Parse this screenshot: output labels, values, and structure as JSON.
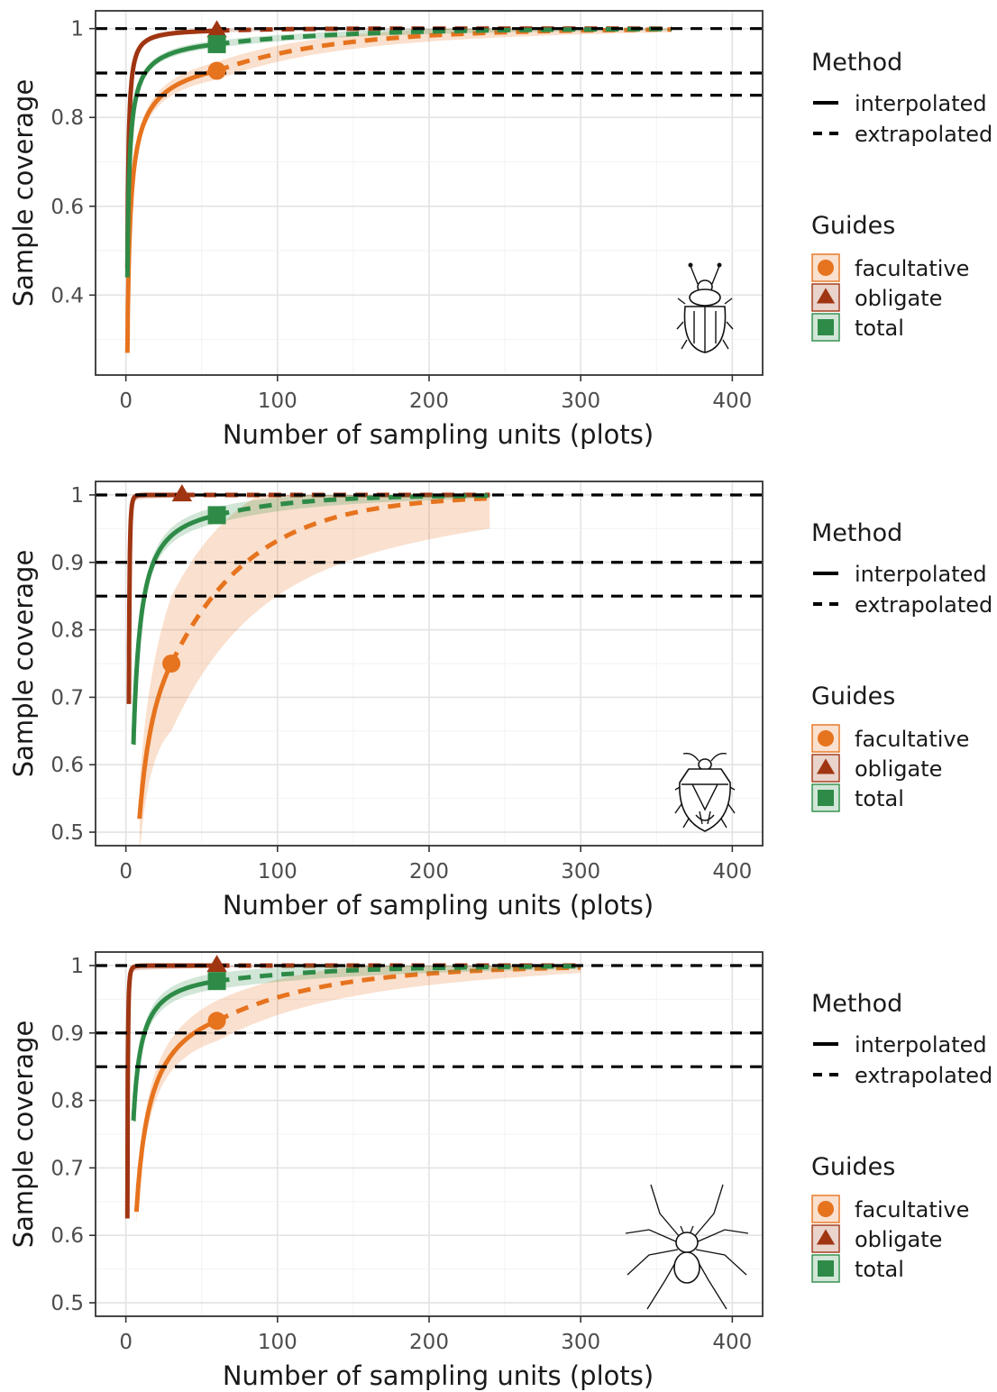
{
  "colors": {
    "facultative": "#e6731e",
    "obligate": "#a03512",
    "total": "#2e8b47",
    "reference_line": "#000000",
    "panel_border": "#333333",
    "grid_major": "#e3e3e3",
    "grid_minor": "#f2f2f2"
  },
  "legend": {
    "method_title": "Method",
    "method_items": [
      {
        "label": "interpolated",
        "line": "solid"
      },
      {
        "label": "extrapolated",
        "line": "dashed"
      }
    ],
    "guides_title": "Guides",
    "guides_items": [
      {
        "label": "facultative",
        "shape": "circle",
        "color": "#e6731e"
      },
      {
        "label": "obligate",
        "shape": "triangle",
        "color": "#a03512"
      },
      {
        "label": "total",
        "shape": "square",
        "color": "#2e8b47"
      }
    ]
  },
  "chart_data": [
    {
      "type": "line",
      "organism_icon": "beetle-icon",
      "xlabel": "Number of sampling units (plots)",
      "ylabel": "Sample coverage",
      "xlim": [
        -20,
        420
      ],
      "ylim": [
        0.22,
        1.04
      ],
      "xticks": [
        0,
        100,
        200,
        300,
        400
      ],
      "yticks": [
        0.4,
        0.6,
        0.8,
        1.0
      ],
      "reference_lines": [
        1.0,
        0.9,
        0.85
      ],
      "grid": true,
      "legend_position": "right",
      "series": [
        {
          "name": "facultative",
          "observed": {
            "x": 60,
            "y": 0.905
          },
          "start": {
            "x": 1,
            "y": 0.27
          },
          "end": {
            "x": 360,
            "y": 0.998
          },
          "band_width": 0.02,
          "band_width_end": 0.006,
          "ci_tail": 0.012
        },
        {
          "name": "obligate",
          "observed": {
            "x": 60,
            "y": 0.995
          },
          "start": {
            "x": 1,
            "y": 0.46
          },
          "end": {
            "x": 360,
            "y": 1.0
          },
          "band_width": 0.004,
          "band_width_end": 0.001,
          "ci_tail": 0.01
        },
        {
          "name": "total",
          "observed": {
            "x": 60,
            "y": 0.965
          },
          "start": {
            "x": 1,
            "y": 0.44
          },
          "end": {
            "x": 360,
            "y": 0.999
          },
          "band_width": 0.008,
          "band_width_end": 0.003,
          "ci_tail": 0.01
        }
      ]
    },
    {
      "type": "line",
      "organism_icon": "shield-bug-icon",
      "xlabel": "Number of sampling units (plots)",
      "ylabel": "Sample coverage",
      "xlim": [
        -20,
        420
      ],
      "ylim": [
        0.48,
        1.02
      ],
      "xticks": [
        0,
        100,
        200,
        300,
        400
      ],
      "yticks": [
        0.5,
        0.6,
        0.7,
        0.8,
        0.9,
        1.0
      ],
      "reference_lines": [
        1.0,
        0.9,
        0.85
      ],
      "grid": true,
      "legend_position": "right",
      "series": [
        {
          "name": "facultative",
          "observed": {
            "x": 30,
            "y": 0.75
          },
          "start": {
            "x": 9,
            "y": 0.52
          },
          "end": {
            "x": 240,
            "y": 0.995
          },
          "band_width": 0.1,
          "band_width_end": 0.045,
          "ci_tail": 0.03
        },
        {
          "name": "obligate",
          "observed": {
            "x": 37,
            "y": 1.0
          },
          "start": {
            "x": 2,
            "y": 0.69
          },
          "end": {
            "x": 240,
            "y": 1.0
          },
          "band_width": 0.003,
          "band_width_end": 0.001,
          "ci_tail": 0.01
        },
        {
          "name": "total",
          "observed": {
            "x": 60,
            "y": 0.97
          },
          "start": {
            "x": 5,
            "y": 0.63
          },
          "end": {
            "x": 240,
            "y": 0.999
          },
          "band_width": 0.012,
          "band_width_end": 0.004,
          "ci_tail": 0.012
        }
      ]
    },
    {
      "type": "line",
      "organism_icon": "spider-icon",
      "xlabel": "Number of sampling units (plots)",
      "ylabel": "Sample coverage",
      "xlim": [
        -20,
        420
      ],
      "ylim": [
        0.48,
        1.02
      ],
      "xticks": [
        0,
        100,
        200,
        300,
        400
      ],
      "yticks": [
        0.5,
        0.6,
        0.7,
        0.8,
        0.9,
        1.0
      ],
      "reference_lines": [
        1.0,
        0.9,
        0.85
      ],
      "grid": true,
      "legend_position": "right",
      "series": [
        {
          "name": "facultative",
          "observed": {
            "x": 60,
            "y": 0.918
          },
          "start": {
            "x": 7,
            "y": 0.635
          },
          "end": {
            "x": 300,
            "y": 0.997
          },
          "band_width": 0.03,
          "band_width_end": 0.008,
          "ci_tail": 0.015
        },
        {
          "name": "obligate",
          "observed": {
            "x": 60,
            "y": 1.0
          },
          "start": {
            "x": 1,
            "y": 0.625
          },
          "end": {
            "x": 300,
            "y": 1.0
          },
          "band_width": 0.003,
          "band_width_end": 0.001,
          "ci_tail": 0.01
        },
        {
          "name": "total",
          "observed": {
            "x": 60,
            "y": 0.977
          },
          "start": {
            "x": 5,
            "y": 0.77
          },
          "end": {
            "x": 300,
            "y": 0.999
          },
          "band_width": 0.012,
          "band_width_end": 0.004,
          "ci_tail": 0.012
        }
      ]
    }
  ]
}
